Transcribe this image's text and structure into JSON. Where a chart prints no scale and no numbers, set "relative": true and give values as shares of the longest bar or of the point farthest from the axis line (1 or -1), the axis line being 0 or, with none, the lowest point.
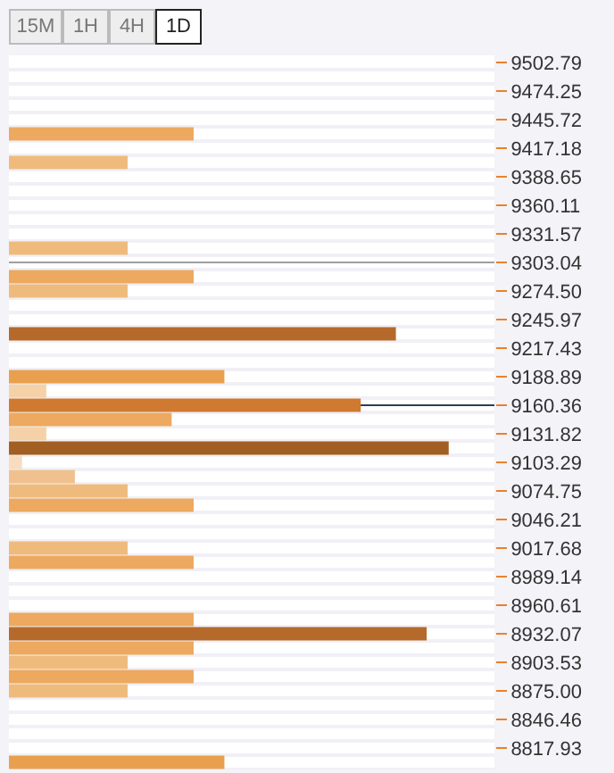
{
  "chart_data": {
    "type": "bar",
    "orientation": "horizontal",
    "relative": true,
    "categories": [
      "9502.79",
      null,
      "9474.25",
      null,
      "9445.72",
      null,
      "9417.18",
      null,
      "9388.65",
      null,
      "9360.11",
      null,
      "9331.57",
      null,
      "9303.04",
      null,
      "9274.50",
      null,
      "9245.97",
      null,
      "9217.43",
      null,
      "9188.89",
      null,
      "9160.36",
      null,
      "9131.82",
      null,
      "9103.29",
      null,
      "9074.75",
      null,
      "9046.21",
      null,
      "9017.68",
      null,
      "8989.14",
      null,
      "8960.61",
      null,
      "8932.07",
      null,
      "8903.53",
      null,
      "8875.00",
      null,
      "8846.46",
      null,
      "8817.93",
      null
    ],
    "values": [
      null,
      null,
      null,
      null,
      null,
      0.42,
      null,
      0.27,
      null,
      null,
      null,
      null,
      null,
      0.27,
      null,
      0.42,
      0.27,
      null,
      null,
      0.88,
      null,
      null,
      0.49,
      0.085,
      0.8,
      0.37,
      0.085,
      1.0,
      0.03,
      0.15,
      0.27,
      0.42,
      null,
      null,
      0.27,
      0.42,
      null,
      null,
      null,
      0.42,
      0.95,
      0.42,
      0.27,
      0.42,
      0.27,
      null,
      null,
      null,
      null,
      0.49
    ],
    "colors": [
      "#eda95f",
      "#eda95f",
      "#eda95f",
      "#eda95f",
      "#eda95f",
      "#eda95f",
      "#eda95f",
      "#efbb7d",
      "#eda95f",
      "#eda95f",
      "#eda95f",
      "#eda95f",
      "#eda95f",
      "#efbb7d",
      "#eda95f",
      "#eda95f",
      "#efbb7d",
      "#eda95f",
      "#eda95f",
      "#b56a2b",
      "#eda95f",
      "#eda95f",
      "#e9a04e",
      "#f5d1a7",
      "#cf7a30",
      "#eda95f",
      "#f5d1a7",
      "#a25f22",
      "#f8dcc2",
      "#f0c08e",
      "#efbb7d",
      "#eda95f",
      "#eda95f",
      "#eda95f",
      "#efbb7d",
      "#eda95f",
      "#eda95f",
      "#eda95f",
      "#eda95f",
      "#eda95f",
      "#b56a2b",
      "#eda95f",
      "#efbb7d",
      "#eda95f",
      "#efbb7d",
      "#eda95f",
      "#eda95f",
      "#eda95f",
      "#eda95f",
      "#e9a04e"
    ],
    "ref_lines": [
      {
        "axis": "y",
        "value": "9303.04",
        "color": "#9e9e9e"
      },
      {
        "axis": "y",
        "value": "9160.36",
        "color": "#2c3e5c"
      }
    ],
    "annotations": [
      "15M",
      "1H",
      "4H",
      "1D"
    ],
    "grid": false
  }
}
